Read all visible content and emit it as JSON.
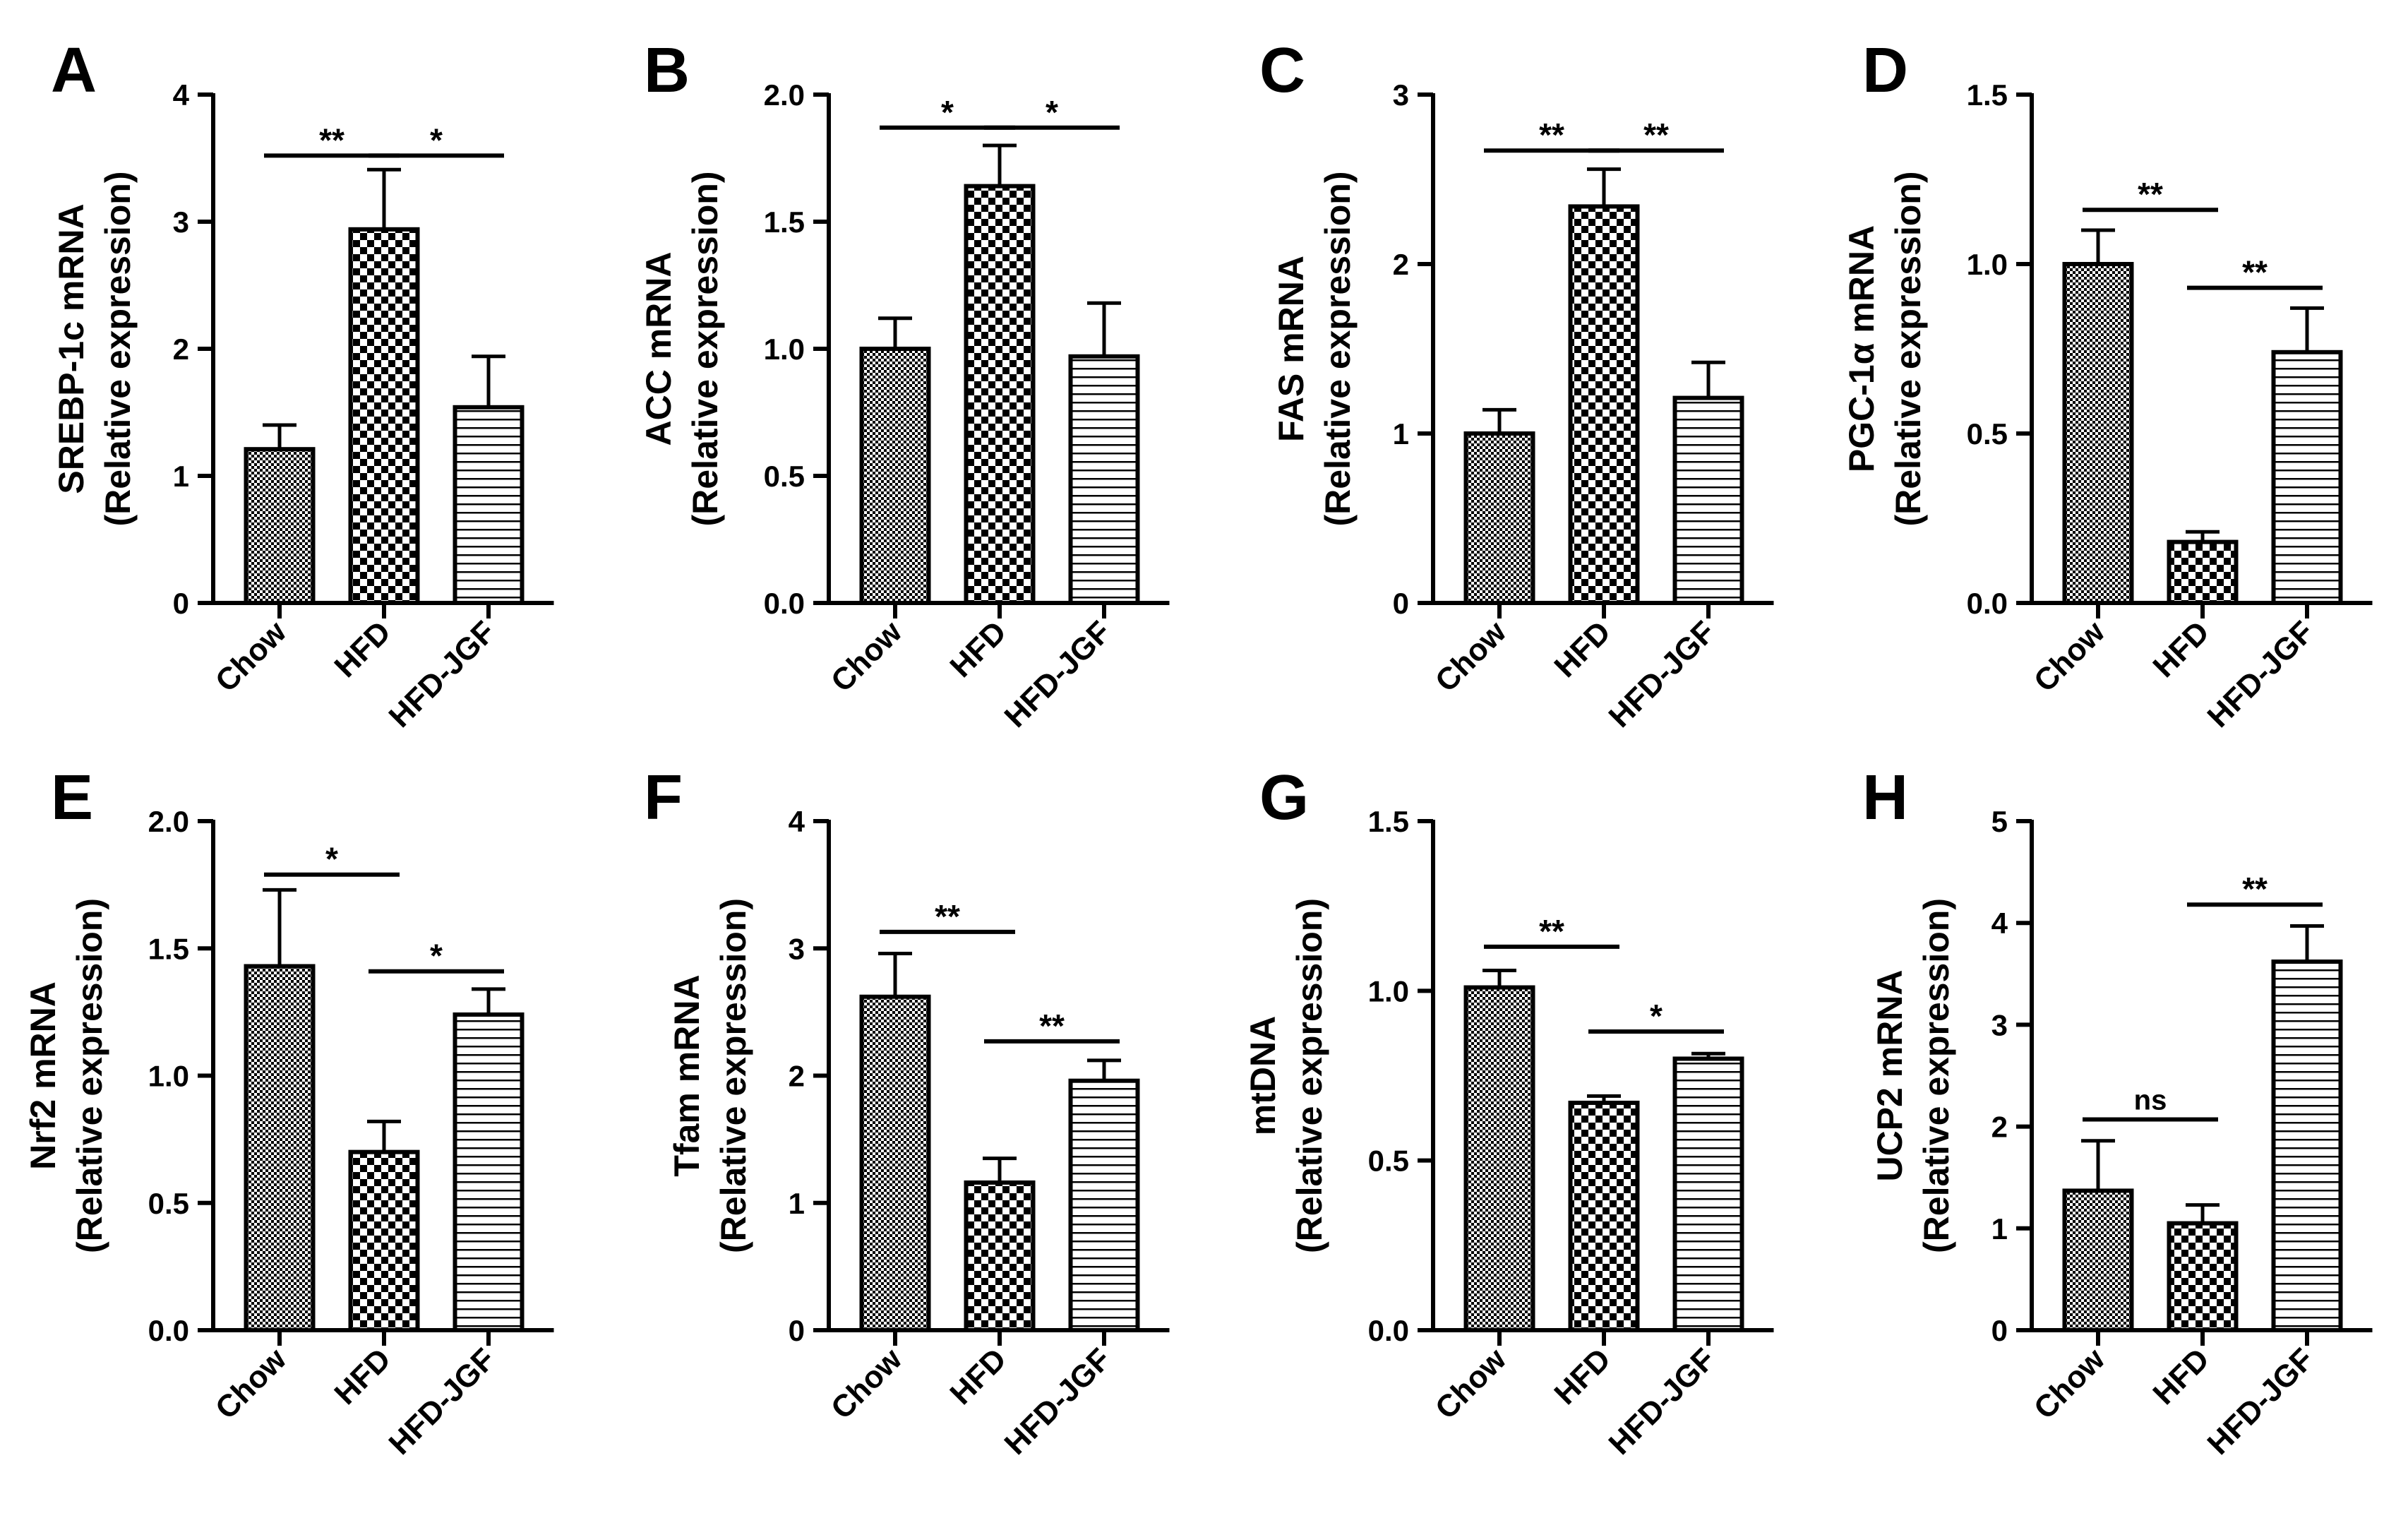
{
  "figure": {
    "colors": {
      "ink": "#000000",
      "background": "#ffffff"
    },
    "groups": [
      "Chow",
      "HFD",
      "HFD-JGF"
    ],
    "patterns": [
      "fine-check-pattern",
      "coarse-check-pattern",
      "horizontal-stripe-pattern"
    ]
  },
  "chart_data": [
    {
      "panel": "A",
      "type": "bar",
      "ylabel": [
        "SREBP-1c mRNA",
        "(Relative expression)"
      ],
      "categories": [
        "Chow",
        "HFD",
        "HFD-JGF"
      ],
      "values": [
        1.21,
        2.94,
        1.54
      ],
      "errors": [
        0.19,
        0.47,
        0.4
      ],
      "ylim": [
        0,
        4
      ],
      "ticks": [
        0,
        1,
        2,
        3,
        4
      ],
      "tick_labels": [
        "0",
        "1",
        "2",
        "3",
        "4"
      ],
      "sig": [
        {
          "from": 0,
          "to": 1,
          "label": "**",
          "y": 3.52
        },
        {
          "from": 1,
          "to": 2,
          "label": "*",
          "y": 3.52
        }
      ]
    },
    {
      "panel": "B",
      "type": "bar",
      "ylabel": [
        "ACC mRNA",
        "(Relative expression)"
      ],
      "categories": [
        "Chow",
        "HFD",
        "HFD-JGF"
      ],
      "values": [
        1.0,
        1.64,
        0.97
      ],
      "errors": [
        0.12,
        0.16,
        0.21
      ],
      "ylim": [
        0,
        2
      ],
      "ticks": [
        0,
        0.5,
        1,
        1.5,
        2
      ],
      "tick_labels": [
        "0.0",
        "0.5",
        "1.0",
        "1.5",
        "2.0"
      ],
      "sig": [
        {
          "from": 0,
          "to": 1,
          "label": "*",
          "y": 1.87
        },
        {
          "from": 1,
          "to": 2,
          "label": "*",
          "y": 1.87
        }
      ]
    },
    {
      "panel": "C",
      "type": "bar",
      "ylabel": [
        "FAS mRNA",
        "(Relative expression)"
      ],
      "categories": [
        "Chow",
        "HFD",
        "HFD-JGF"
      ],
      "values": [
        1.0,
        2.34,
        1.21
      ],
      "errors": [
        0.14,
        0.22,
        0.21
      ],
      "ylim": [
        0,
        3
      ],
      "ticks": [
        0,
        1,
        2,
        3
      ],
      "tick_labels": [
        "0",
        "1",
        "2",
        "3"
      ],
      "sig": [
        {
          "from": 0,
          "to": 1,
          "label": "**",
          "y": 2.67
        },
        {
          "from": 1,
          "to": 2,
          "label": "**",
          "y": 2.67
        }
      ]
    },
    {
      "panel": "D",
      "type": "bar",
      "ylabel": [
        "PGC-1α mRNA",
        "(Relative expression)"
      ],
      "categories": [
        "Chow",
        "HFD",
        "HFD-JGF"
      ],
      "values": [
        1.0,
        0.18,
        0.74
      ],
      "errors": [
        0.1,
        0.03,
        0.13
      ],
      "ylim": [
        0,
        1.5
      ],
      "ticks": [
        0,
        0.5,
        1,
        1.5
      ],
      "tick_labels": [
        "0.0",
        "0.5",
        "1.0",
        "1.5"
      ],
      "sig": [
        {
          "from": 0,
          "to": 1,
          "label": "**",
          "y": 1.16
        },
        {
          "from": 1,
          "to": 2,
          "label": "**",
          "y": 0.93
        }
      ]
    },
    {
      "panel": "E",
      "type": "bar",
      "ylabel": [
        "Nrf2 mRNA",
        "(Relative expression)"
      ],
      "categories": [
        "Chow",
        "HFD",
        "HFD-JGF"
      ],
      "values": [
        1.43,
        0.7,
        1.24
      ],
      "errors": [
        0.3,
        0.12,
        0.1
      ],
      "ylim": [
        0,
        2
      ],
      "ticks": [
        0,
        0.5,
        1,
        1.5,
        2
      ],
      "tick_labels": [
        "0.0",
        "0.5",
        "1.0",
        "1.5",
        "2.0"
      ],
      "sig": [
        {
          "from": 0,
          "to": 1,
          "label": "*",
          "y": 1.79
        },
        {
          "from": 1,
          "to": 2,
          "label": "*",
          "y": 1.41
        }
      ]
    },
    {
      "panel": "F",
      "type": "bar",
      "ylabel": [
        "Tfam mRNA",
        "(Relative expression)"
      ],
      "categories": [
        "Chow",
        "HFD",
        "HFD-JGF"
      ],
      "values": [
        2.62,
        1.16,
        1.96
      ],
      "errors": [
        0.34,
        0.19,
        0.16
      ],
      "ylim": [
        0,
        4
      ],
      "ticks": [
        0,
        1,
        2,
        3,
        4
      ],
      "tick_labels": [
        "0",
        "1",
        "2",
        "3",
        "4"
      ],
      "sig": [
        {
          "from": 0,
          "to": 1,
          "label": "**",
          "y": 3.13
        },
        {
          "from": 1,
          "to": 2,
          "label": "**",
          "y": 2.27
        }
      ]
    },
    {
      "panel": "G",
      "type": "bar",
      "ylabel": [
        "mtDNA",
        "(Relative expression)"
      ],
      "categories": [
        "Chow",
        "HFD",
        "HFD-JGF"
      ],
      "values": [
        1.01,
        0.67,
        0.8
      ],
      "errors": [
        0.05,
        0.02,
        0.015
      ],
      "ylim": [
        0,
        1.5
      ],
      "ticks": [
        0,
        0.5,
        1,
        1.5
      ],
      "tick_labels": [
        "0.0",
        "0.5",
        "1.0",
        "1.5"
      ],
      "sig": [
        {
          "from": 0,
          "to": 1,
          "label": "**",
          "y": 1.13
        },
        {
          "from": 1,
          "to": 2,
          "label": "*",
          "y": 0.88
        }
      ]
    },
    {
      "panel": "H",
      "type": "bar",
      "ylabel": [
        "UCP2 mRNA",
        "(Relative expression)"
      ],
      "categories": [
        "Chow",
        "HFD",
        "HFD-JGF"
      ],
      "values": [
        1.37,
        1.05,
        3.62
      ],
      "errors": [
        0.49,
        0.18,
        0.35
      ],
      "ylim": [
        0,
        5
      ],
      "ticks": [
        0,
        1,
        2,
        3,
        4,
        5
      ],
      "tick_labels": [
        "0",
        "1",
        "2",
        "3",
        "4",
        "5"
      ],
      "sig": [
        {
          "from": 0,
          "to": 1,
          "label": "ns",
          "y": 2.07
        },
        {
          "from": 1,
          "to": 2,
          "label": "**",
          "y": 4.18
        }
      ]
    }
  ]
}
